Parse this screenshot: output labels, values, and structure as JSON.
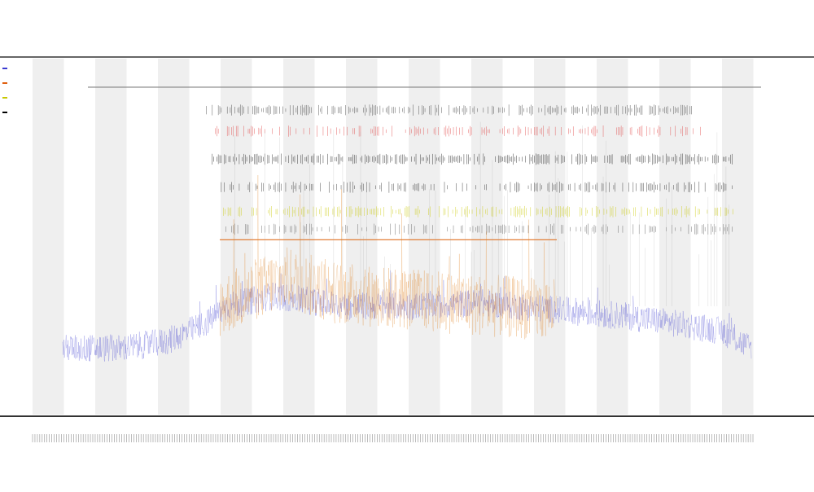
{
  "chart_data": {
    "type": "line",
    "title": "",
    "subtitle_lines": [
      "",
      ""
    ],
    "xlabel": "",
    "ylabel": "",
    "x_range": [
      0,
      1000
    ],
    "y_range": [
      0,
      100
    ],
    "grid": false,
    "band_count": 24,
    "legend": [
      {
        "name": "",
        "color": "#3a3ad0"
      },
      {
        "name": "",
        "color": "#e06010"
      },
      {
        "name": "",
        "color": "#c8c800"
      },
      {
        "name": "",
        "color": "#000000"
      }
    ],
    "reference_line": {
      "y": 92
    },
    "track_rows": [
      {
        "name": "track-black-top",
        "y": 86,
        "color": "#333333",
        "density": 0.62,
        "start": 230,
        "end": 880
      },
      {
        "name": "track-red",
        "y": 80,
        "color": "#e04040",
        "density": 0.42,
        "start": 240,
        "end": 900
      },
      {
        "name": "track-black-mid",
        "y": 72,
        "color": "#111111",
        "density": 0.7,
        "start": 240,
        "end": 935
      },
      {
        "name": "track-black-low",
        "y": 64,
        "color": "#222222",
        "density": 0.45,
        "start": 250,
        "end": 935
      },
      {
        "name": "track-yellow",
        "y": 57,
        "color": "#c8c800",
        "density": 0.55,
        "start": 255,
        "end": 935
      },
      {
        "name": "track-gray",
        "y": 52,
        "color": "#555555",
        "density": 0.4,
        "start": 250,
        "end": 935
      }
    ],
    "orange_hline": {
      "y": 49,
      "x_start": 250,
      "x_end": 700,
      "color": "#e07020"
    },
    "series": [
      {
        "name": "",
        "color": "#3a3ad0",
        "x_start": 40,
        "x_end": 960,
        "base": [
          [
            40,
            18
          ],
          [
            120,
            18
          ],
          [
            180,
            20
          ],
          [
            230,
            25
          ],
          [
            260,
            30
          ],
          [
            320,
            33
          ],
          [
            420,
            30
          ],
          [
            500,
            30
          ],
          [
            600,
            31
          ],
          [
            700,
            29
          ],
          [
            800,
            27
          ],
          [
            860,
            25
          ],
          [
            920,
            23
          ],
          [
            960,
            18
          ]
        ],
        "noise": 4
      },
      {
        "name": "",
        "color": "#e08020",
        "x_start": 250,
        "x_end": 700,
        "base": [
          [
            250,
            30
          ],
          [
            300,
            35
          ],
          [
            340,
            38
          ],
          [
            400,
            34
          ],
          [
            450,
            33
          ],
          [
            500,
            32
          ],
          [
            560,
            31
          ],
          [
            620,
            30
          ],
          [
            700,
            29
          ]
        ],
        "noise": 9
      }
    ],
    "x_tick_count": 300
  }
}
